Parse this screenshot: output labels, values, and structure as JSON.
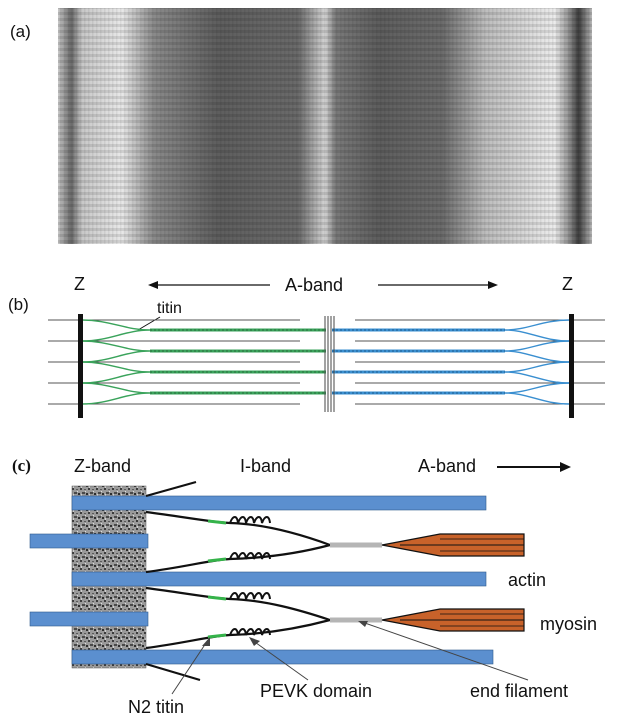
{
  "panel_a": {
    "label": "(a)"
  },
  "panel_b": {
    "label": "(b)",
    "z_left": "Z",
    "z_right": "Z",
    "a_band": "A-band",
    "titin": "titin"
  },
  "panel_c": {
    "label": "(c)",
    "z_band": "Z-band",
    "i_band": "I-band",
    "a_band": "A-band",
    "actin": "actin",
    "myosin": "myosin",
    "n2_titin": "N2 titin",
    "pevk": "PEVK domain",
    "end_filament": "end filament"
  },
  "colors": {
    "actin_blue": "#5b8fcf",
    "titin_green": "#3aa35b",
    "titin_blue": "#3a8fd0",
    "myosin_orange": "#c8622a",
    "n2_green": "#35b34a"
  }
}
